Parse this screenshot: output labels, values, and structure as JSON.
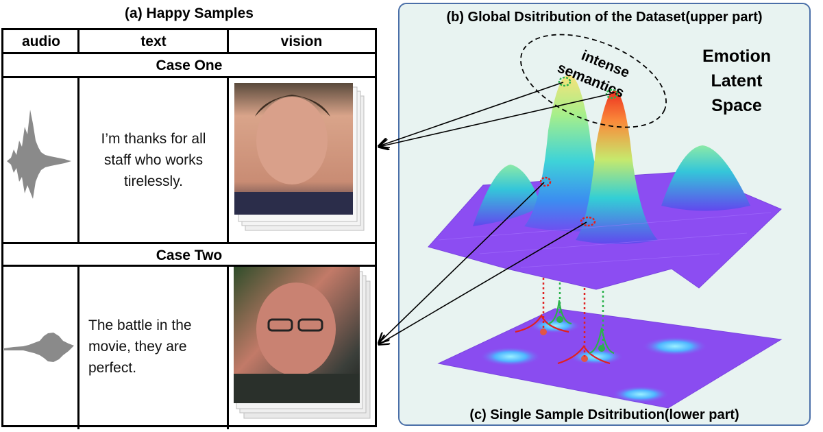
{
  "panel_a": {
    "title": "(a) Happy Samples",
    "columns": [
      "audio",
      "text",
      "vision"
    ],
    "cases": [
      {
        "label": "Case One",
        "text_lines": [
          "I’m thanks for all",
          "staff who works",
          "tirelessly."
        ]
      },
      {
        "label": "Case Two",
        "text_lines": [
          "The battle in the",
          "movie, they are",
          "perfect."
        ]
      }
    ]
  },
  "panel_b": {
    "title": "(b) Global Dsitribution of the Dataset(upper part)",
    "latent_space_lines": [
      "Emotion",
      "Latent",
      "Space"
    ],
    "annotation_lines": [
      "intense",
      "semantics"
    ]
  },
  "panel_c": {
    "title": "(c) Single Sample Dsitribution(lower part)"
  },
  "colors": {
    "panel_border": "#4a6fa8",
    "panel_background": "#e8f3f1",
    "surface_base": "#8a4cf0",
    "marker_red": "#e02020",
    "marker_green": "#2bb24c"
  }
}
